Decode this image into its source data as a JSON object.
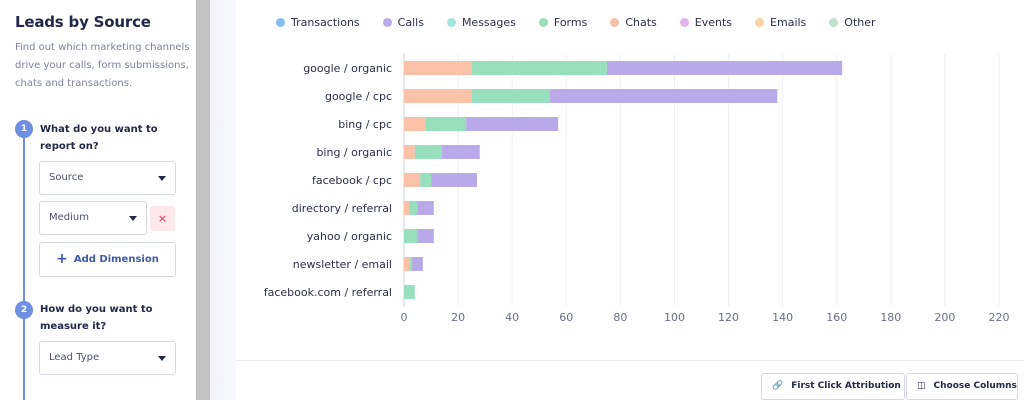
{
  "panel": {
    "title": "Leads by Source",
    "description": "Find out which marketing channels drive your calls, form submissions, chats and transactions."
  },
  "steps": [
    {
      "number": "1",
      "question": "What do you want to report on?"
    },
    {
      "number": "2",
      "question": "How do you want to measure it?"
    }
  ],
  "selects": {
    "dimension1": "Source",
    "dimension2": "Medium",
    "measure": "Lead Type"
  },
  "remove_icon": "×",
  "add_dimension_label": "Add Dimension",
  "add_icon": "+",
  "footer": {
    "attribution_label": "First Click Attribution",
    "attribution_icon": "link-icon",
    "columns_label": "Choose Columns",
    "columns_icon": "columns-icon"
  },
  "chart_data": {
    "type": "bar",
    "orientation": "horizontal",
    "stacked": true,
    "categories": [
      "google / organic",
      "google / cpc",
      "bing / cpc",
      "bing / organic",
      "facebook / cpc",
      "directory / referral",
      "yahoo / organic",
      "newsletter / email",
      "facebook.com / referral"
    ],
    "series": [
      {
        "name": "Transactions",
        "color": "#83bdf1",
        "values": [
          0,
          0,
          0,
          0,
          0,
          0,
          0,
          0,
          0
        ]
      },
      {
        "name": "Calls",
        "color": "#b8aae8",
        "values": [
          87,
          84,
          34,
          14,
          17,
          6,
          6,
          4,
          0
        ]
      },
      {
        "name": "Messages",
        "color": "#a3e4e0",
        "values": [
          0,
          0,
          0,
          0,
          0,
          0,
          0,
          0,
          0
        ]
      },
      {
        "name": "Forms",
        "color": "#98dfbd",
        "values": [
          50,
          29,
          15,
          10,
          4,
          3,
          5,
          1,
          4
        ]
      },
      {
        "name": "Chats",
        "color": "#f8c1a8",
        "values": [
          25,
          25,
          8,
          4,
          6,
          2,
          0,
          2,
          0
        ]
      },
      {
        "name": "Events",
        "color": "#e1b4ec",
        "values": [
          0,
          0,
          0,
          0,
          0,
          0,
          0,
          0,
          0
        ]
      },
      {
        "name": "Emails",
        "color": "#f7d5a2",
        "values": [
          0,
          0,
          0,
          0,
          0,
          0,
          0,
          0,
          0
        ]
      },
      {
        "name": "Other",
        "color": "#bfe2cc",
        "values": [
          0,
          0,
          0,
          0,
          0,
          0,
          0,
          0,
          0
        ]
      }
    ],
    "stack_order": [
      "Chats",
      "Forms",
      "Calls"
    ],
    "x_ticks": [
      "0",
      "20",
      "40",
      "60",
      "80",
      "100",
      "120",
      "140",
      "160",
      "180",
      "200",
      "220"
    ],
    "xlim": [
      0,
      220
    ],
    "grid": true,
    "legend_position": "top"
  }
}
